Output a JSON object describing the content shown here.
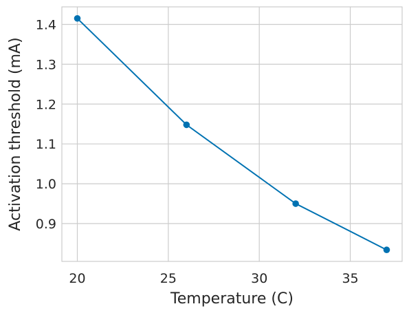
{
  "chart_data": {
    "type": "line",
    "title": "",
    "xlabel": "Temperature (C)",
    "ylabel": "Activation threshold (mA)",
    "x": [
      20,
      26,
      32,
      37
    ],
    "series": [
      {
        "values": [
          1.415,
          1.148,
          0.95,
          0.834
        ]
      }
    ],
    "xlim": [
      19.15,
      37.85
    ],
    "ylim": [
      0.805,
      1.444
    ],
    "xticks": [
      20,
      25,
      30,
      35
    ],
    "xtick_labels": [
      "20",
      "25",
      "30",
      "35"
    ],
    "yticks": [
      0.9,
      1.0,
      1.1,
      1.2,
      1.3,
      1.4
    ],
    "ytick_labels": [
      "0.9",
      "1.0",
      "1.1",
      "1.2",
      "1.3",
      "1.4"
    ],
    "grid": true,
    "line_color": "#0072b2",
    "grid_color": "#cccccc",
    "spine_color": "#cccccc",
    "text_color": "#262626"
  }
}
